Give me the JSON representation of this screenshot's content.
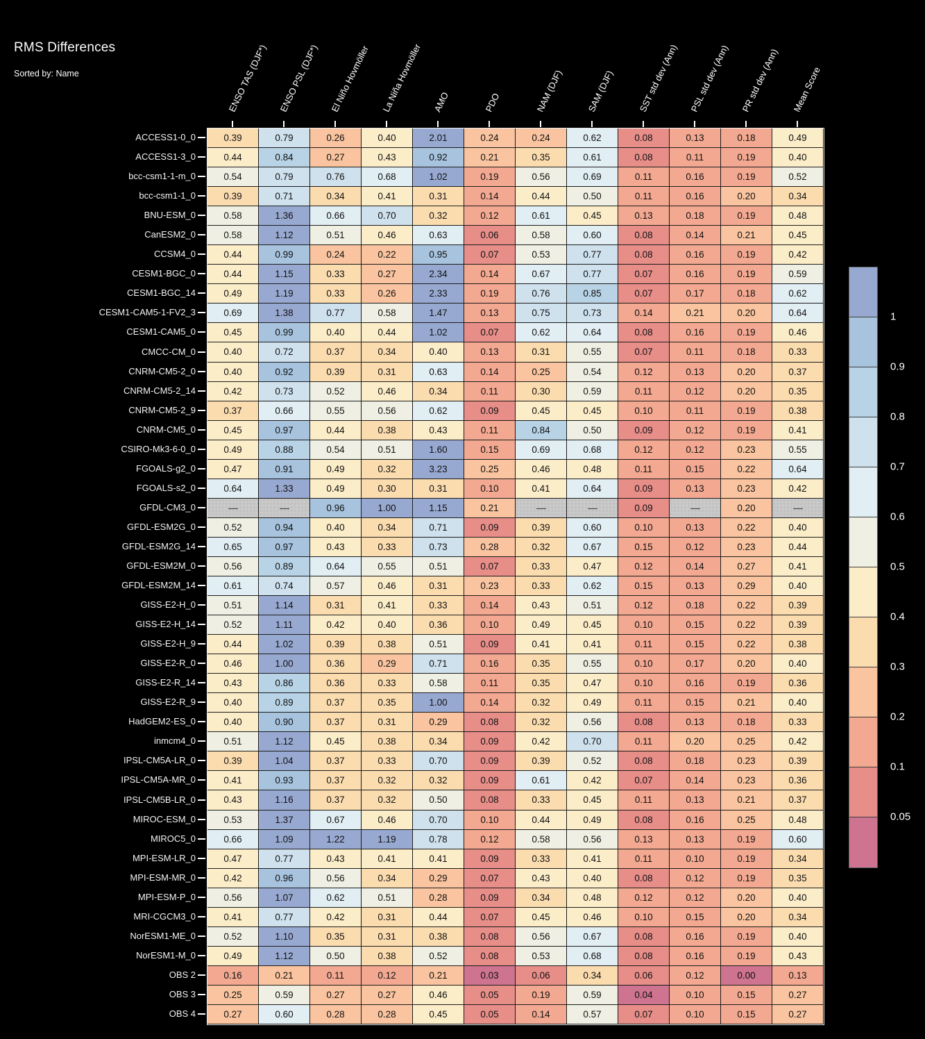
{
  "title": "RMS Differences",
  "subtitle": "Sorted by: Name",
  "missing_token": "----",
  "colors": {
    "background": "#000000",
    "label_text": "#ffffff",
    "cell_text": "#101010",
    "missing_cell": "#c9c9c9",
    "grid_line": "#1b1b1b",
    "axis_spine": "#ececec"
  },
  "chart_data": {
    "type": "heatmap",
    "title": "RMS Differences",
    "subtitle": "Sorted by: Name",
    "legend_position": "right",
    "columns": [
      "ENSO TAS (DJF*)",
      "ENSO PSL (DJF*)",
      "El Niño Hovmöller",
      "La Niña Hovmöller",
      "AMO",
      "PDO",
      "NAM (DJF)",
      "SAM (DJF)",
      "SST std dev (Ann)",
      "PSL std dev (Ann)",
      "PR std dev (Ann)",
      "Mean Score"
    ],
    "missing_token": "----",
    "rows": [
      {
        "name": "ACCESS1-0_0",
        "values": [
          "0.39",
          "0.79",
          "0.26",
          "0.40",
          "2.01",
          "0.24",
          "0.24",
          "0.62",
          "0.08",
          "0.13",
          "0.18",
          "0.49"
        ]
      },
      {
        "name": "ACCESS1-3_0",
        "values": [
          "0.44",
          "0.84",
          "0.27",
          "0.43",
          "0.92",
          "0.21",
          "0.35",
          "0.61",
          "0.08",
          "0.11",
          "0.19",
          "0.40"
        ]
      },
      {
        "name": "bcc-csm1-1-m_0",
        "values": [
          "0.54",
          "0.79",
          "0.76",
          "0.68",
          "1.02",
          "0.19",
          "0.56",
          "0.69",
          "0.11",
          "0.16",
          "0.19",
          "0.52"
        ]
      },
      {
        "name": "bcc-csm1-1_0",
        "values": [
          "0.39",
          "0.71",
          "0.34",
          "0.41",
          "0.31",
          "0.14",
          "0.44",
          "0.50",
          "0.11",
          "0.16",
          "0.20",
          "0.34"
        ]
      },
      {
        "name": "BNU-ESM_0",
        "values": [
          "0.58",
          "1.36",
          "0.66",
          "0.70",
          "0.32",
          "0.12",
          "0.61",
          "0.45",
          "0.13",
          "0.18",
          "0.19",
          "0.48"
        ]
      },
      {
        "name": "CanESM2_0",
        "values": [
          "0.58",
          "1.12",
          "0.51",
          "0.46",
          "0.63",
          "0.06",
          "0.58",
          "0.60",
          "0.08",
          "0.14",
          "0.21",
          "0.45"
        ]
      },
      {
        "name": "CCSM4_0",
        "values": [
          "0.44",
          "0.99",
          "0.24",
          "0.22",
          "0.95",
          "0.07",
          "0.53",
          "0.77",
          "0.08",
          "0.16",
          "0.19",
          "0.42"
        ]
      },
      {
        "name": "CESM1-BGC_0",
        "values": [
          "0.44",
          "1.15",
          "0.33",
          "0.27",
          "2.34",
          "0.14",
          "0.67",
          "0.77",
          "0.07",
          "0.16",
          "0.19",
          "0.59"
        ]
      },
      {
        "name": "CESM1-BGC_14",
        "values": [
          "0.49",
          "1.19",
          "0.33",
          "0.26",
          "2.33",
          "0.19",
          "0.76",
          "0.85",
          "0.07",
          "0.17",
          "0.18",
          "0.62"
        ]
      },
      {
        "name": "CESM1-CAM5-1-FV2_3",
        "values": [
          "0.69",
          "1.38",
          "0.77",
          "0.58",
          "1.47",
          "0.13",
          "0.75",
          "0.73",
          "0.14",
          "0.21",
          "0.20",
          "0.64"
        ]
      },
      {
        "name": "CESM1-CAM5_0",
        "values": [
          "0.45",
          "0.99",
          "0.40",
          "0.44",
          "1.02",
          "0.07",
          "0.62",
          "0.64",
          "0.08",
          "0.16",
          "0.19",
          "0.46"
        ]
      },
      {
        "name": "CMCC-CM_0",
        "values": [
          "0.40",
          "0.72",
          "0.37",
          "0.34",
          "0.40",
          "0.13",
          "0.31",
          "0.55",
          "0.07",
          "0.11",
          "0.18",
          "0.33"
        ]
      },
      {
        "name": "CNRM-CM5-2_0",
        "values": [
          "0.40",
          "0.92",
          "0.39",
          "0.31",
          "0.63",
          "0.14",
          "0.25",
          "0.54",
          "0.12",
          "0.13",
          "0.20",
          "0.37"
        ]
      },
      {
        "name": "CNRM-CM5-2_14",
        "values": [
          "0.42",
          "0.73",
          "0.52",
          "0.46",
          "0.34",
          "0.11",
          "0.30",
          "0.59",
          "0.11",
          "0.12",
          "0.20",
          "0.35"
        ]
      },
      {
        "name": "CNRM-CM5-2_9",
        "values": [
          "0.37",
          "0.66",
          "0.55",
          "0.56",
          "0.62",
          "0.09",
          "0.45",
          "0.45",
          "0.10",
          "0.11",
          "0.19",
          "0.38"
        ]
      },
      {
        "name": "CNRM-CM5_0",
        "values": [
          "0.45",
          "0.97",
          "0.44",
          "0.38",
          "0.43",
          "0.11",
          "0.84",
          "0.50",
          "0.09",
          "0.12",
          "0.19",
          "0.41"
        ]
      },
      {
        "name": "CSIRO-Mk3-6-0_0",
        "values": [
          "0.49",
          "0.88",
          "0.54",
          "0.51",
          "1.60",
          "0.15",
          "0.69",
          "0.68",
          "0.12",
          "0.12",
          "0.23",
          "0.55"
        ]
      },
      {
        "name": "FGOALS-g2_0",
        "values": [
          "0.47",
          "0.91",
          "0.49",
          "0.32",
          "3.23",
          "0.25",
          "0.46",
          "0.48",
          "0.11",
          "0.15",
          "0.22",
          "0.64"
        ]
      },
      {
        "name": "FGOALS-s2_0",
        "values": [
          "0.64",
          "1.33",
          "0.49",
          "0.30",
          "0.31",
          "0.10",
          "0.41",
          "0.64",
          "0.09",
          "0.13",
          "0.23",
          "0.42"
        ]
      },
      {
        "name": "GFDL-CM3_0",
        "values": [
          "----",
          "----",
          "0.96",
          "1.00",
          "1.15",
          "0.21",
          "----",
          "----",
          "0.09",
          "----",
          "0.20",
          "----"
        ]
      },
      {
        "name": "GFDL-ESM2G_0",
        "values": [
          "0.52",
          "0.94",
          "0.40",
          "0.34",
          "0.71",
          "0.09",
          "0.39",
          "0.60",
          "0.10",
          "0.13",
          "0.22",
          "0.40"
        ]
      },
      {
        "name": "GFDL-ESM2G_14",
        "values": [
          "0.65",
          "0.97",
          "0.43",
          "0.33",
          "0.73",
          "0.28",
          "0.32",
          "0.67",
          "0.15",
          "0.12",
          "0.23",
          "0.44"
        ]
      },
      {
        "name": "GFDL-ESM2M_0",
        "values": [
          "0.56",
          "0.89",
          "0.64",
          "0.55",
          "0.51",
          "0.07",
          "0.33",
          "0.47",
          "0.12",
          "0.14",
          "0.27",
          "0.41"
        ]
      },
      {
        "name": "GFDL-ESM2M_14",
        "values": [
          "0.61",
          "0.74",
          "0.57",
          "0.46",
          "0.31",
          "0.23",
          "0.33",
          "0.62",
          "0.15",
          "0.13",
          "0.29",
          "0.40"
        ]
      },
      {
        "name": "GISS-E2-H_0",
        "values": [
          "0.51",
          "1.14",
          "0.31",
          "0.41",
          "0.33",
          "0.14",
          "0.43",
          "0.51",
          "0.12",
          "0.18",
          "0.22",
          "0.39"
        ]
      },
      {
        "name": "GISS-E2-H_14",
        "values": [
          "0.52",
          "1.11",
          "0.42",
          "0.40",
          "0.36",
          "0.10",
          "0.49",
          "0.45",
          "0.10",
          "0.15",
          "0.22",
          "0.39"
        ]
      },
      {
        "name": "GISS-E2-H_9",
        "values": [
          "0.44",
          "1.02",
          "0.39",
          "0.38",
          "0.51",
          "0.09",
          "0.41",
          "0.41",
          "0.11",
          "0.15",
          "0.22",
          "0.38"
        ]
      },
      {
        "name": "GISS-E2-R_0",
        "values": [
          "0.46",
          "1.00",
          "0.36",
          "0.29",
          "0.71",
          "0.16",
          "0.35",
          "0.55",
          "0.10",
          "0.17",
          "0.20",
          "0.40"
        ]
      },
      {
        "name": "GISS-E2-R_14",
        "values": [
          "0.43",
          "0.86",
          "0.36",
          "0.33",
          "0.58",
          "0.11",
          "0.35",
          "0.47",
          "0.10",
          "0.16",
          "0.19",
          "0.36"
        ]
      },
      {
        "name": "GISS-E2-R_9",
        "values": [
          "0.40",
          "0.89",
          "0.37",
          "0.35",
          "1.00",
          "0.14",
          "0.32",
          "0.49",
          "0.11",
          "0.15",
          "0.21",
          "0.40"
        ]
      },
      {
        "name": "HadGEM2-ES_0",
        "values": [
          "0.40",
          "0.90",
          "0.37",
          "0.31",
          "0.29",
          "0.08",
          "0.32",
          "0.56",
          "0.08",
          "0.13",
          "0.18",
          "0.33"
        ]
      },
      {
        "name": "inmcm4_0",
        "values": [
          "0.51",
          "1.12",
          "0.45",
          "0.38",
          "0.34",
          "0.09",
          "0.42",
          "0.70",
          "0.11",
          "0.20",
          "0.25",
          "0.42"
        ]
      },
      {
        "name": "IPSL-CM5A-LR_0",
        "values": [
          "0.39",
          "1.04",
          "0.37",
          "0.33",
          "0.70",
          "0.09",
          "0.39",
          "0.52",
          "0.08",
          "0.18",
          "0.23",
          "0.39"
        ]
      },
      {
        "name": "IPSL-CM5A-MR_0",
        "values": [
          "0.41",
          "0.93",
          "0.37",
          "0.32",
          "0.32",
          "0.09",
          "0.61",
          "0.42",
          "0.07",
          "0.14",
          "0.23",
          "0.36"
        ]
      },
      {
        "name": "IPSL-CM5B-LR_0",
        "values": [
          "0.43",
          "1.16",
          "0.37",
          "0.32",
          "0.50",
          "0.08",
          "0.33",
          "0.45",
          "0.11",
          "0.13",
          "0.21",
          "0.37"
        ]
      },
      {
        "name": "MIROC-ESM_0",
        "values": [
          "0.53",
          "1.37",
          "0.67",
          "0.46",
          "0.70",
          "0.10",
          "0.44",
          "0.49",
          "0.08",
          "0.16",
          "0.25",
          "0.48"
        ]
      },
      {
        "name": "MIROC5_0",
        "values": [
          "0.66",
          "1.09",
          "1.22",
          "1.19",
          "0.78",
          "0.12",
          "0.58",
          "0.56",
          "0.13",
          "0.13",
          "0.19",
          "0.60"
        ]
      },
      {
        "name": "MPI-ESM-LR_0",
        "values": [
          "0.47",
          "0.77",
          "0.43",
          "0.41",
          "0.41",
          "0.09",
          "0.33",
          "0.41",
          "0.11",
          "0.10",
          "0.19",
          "0.34"
        ]
      },
      {
        "name": "MPI-ESM-MR_0",
        "values": [
          "0.42",
          "0.96",
          "0.56",
          "0.34",
          "0.29",
          "0.07",
          "0.43",
          "0.40",
          "0.08",
          "0.12",
          "0.19",
          "0.35"
        ]
      },
      {
        "name": "MPI-ESM-P_0",
        "values": [
          "0.56",
          "1.07",
          "0.62",
          "0.51",
          "0.28",
          "0.09",
          "0.34",
          "0.48",
          "0.12",
          "0.12",
          "0.20",
          "0.40"
        ]
      },
      {
        "name": "MRI-CGCM3_0",
        "values": [
          "0.41",
          "0.77",
          "0.42",
          "0.31",
          "0.44",
          "0.07",
          "0.45",
          "0.46",
          "0.10",
          "0.15",
          "0.20",
          "0.34"
        ]
      },
      {
        "name": "NorESM1-ME_0",
        "values": [
          "0.52",
          "1.10",
          "0.35",
          "0.31",
          "0.38",
          "0.08",
          "0.56",
          "0.67",
          "0.08",
          "0.16",
          "0.19",
          "0.40"
        ]
      },
      {
        "name": "NorESM1-M_0",
        "values": [
          "0.49",
          "1.12",
          "0.50",
          "0.38",
          "0.52",
          "0.08",
          "0.53",
          "0.68",
          "0.08",
          "0.16",
          "0.19",
          "0.43"
        ]
      },
      {
        "name": "OBS 2",
        "values": [
          "0.16",
          "0.21",
          "0.11",
          "0.12",
          "0.21",
          "0.03",
          "0.06",
          "0.34",
          "0.06",
          "0.12",
          "0.00",
          "0.13"
        ]
      },
      {
        "name": "OBS 3",
        "values": [
          "0.25",
          "0.59",
          "0.27",
          "0.27",
          "0.46",
          "0.05",
          "0.19",
          "0.59",
          "0.04",
          "0.10",
          "0.15",
          "0.27"
        ]
      },
      {
        "name": "OBS 4",
        "values": [
          "0.27",
          "0.60",
          "0.28",
          "0.28",
          "0.45",
          "0.05",
          "0.14",
          "0.57",
          "0.07",
          "0.10",
          "0.15",
          "0.27"
        ]
      }
    ],
    "value_bins": {
      "edges_low_to_high": [
        0.05,
        0.1,
        0.2,
        0.3,
        0.4,
        0.5,
        0.6,
        0.7,
        0.8,
        0.9,
        1
      ],
      "colors_low_to_high": [
        "#ce7490",
        "#e78e89",
        "#f3a991",
        "#f9c49f",
        "#fbdcaf",
        "#fcedc9",
        "#eff0e3",
        "#e1eef4",
        "#cfe1ed",
        "#b8d3e6",
        "#a7c3de",
        "#98a9d1"
      ],
      "missing_color": "#c9c9c9"
    },
    "colorbar": {
      "position": "right",
      "tick_labels_top_to_bottom": [
        "1",
        "0.9",
        "0.8",
        "0.7",
        "0.6",
        "0.5",
        "0.4",
        "0.3",
        "0.2",
        "0.1",
        "0.05"
      ]
    }
  }
}
